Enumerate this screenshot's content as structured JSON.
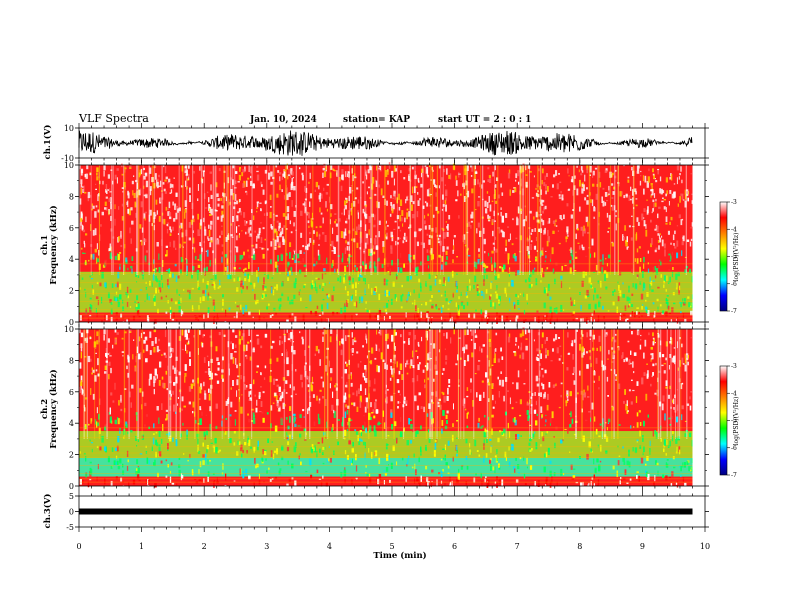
{
  "header": {
    "title": "VLF Spectra",
    "date": "Jan. 10, 2024",
    "station": "station= KAP",
    "start": "start  UT  =   2  : 0   : 1"
  },
  "chart_data": {
    "type": "heatmap",
    "x_axis": {
      "label": "Time  (min)",
      "range": [
        0,
        10
      ],
      "ticks": [
        0,
        1,
        2,
        3,
        4,
        5,
        6,
        7,
        8,
        9,
        10
      ],
      "data_end": 9.8
    },
    "panels": [
      {
        "id": "ch1-waveform",
        "type": "line",
        "ylabel": "ch.1(V)",
        "ylim": [
          -10,
          10
        ],
        "yticks": [
          10,
          -10
        ]
      },
      {
        "id": "ch1-spectrogram",
        "type": "heatmap",
        "ylabel_top": "ch.1",
        "ylabel": "Frequency  (kHz)",
        "ylim": [
          0,
          10
        ],
        "yticks": [
          0,
          2,
          4,
          6,
          8,
          10
        ],
        "colorbar": {
          "label": "log(PSD)(V²/Hz)",
          "range": [
            -7,
            -3
          ],
          "ticks": [
            -3,
            -4,
            -5,
            -6,
            -7
          ]
        }
      },
      {
        "id": "ch2-spectrogram",
        "type": "heatmap",
        "ylabel_top": "ch.2",
        "ylabel": "Frequency  (kHz)",
        "ylim": [
          0,
          10
        ],
        "yticks": [
          0,
          2,
          4,
          6,
          8,
          10
        ],
        "colorbar": {
          "label": "log(PSD)(V²/Hz)",
          "range": [
            -7,
            -3
          ],
          "ticks": [
            -3,
            -4,
            -5,
            -6,
            -7
          ]
        }
      },
      {
        "id": "ch3-waveform",
        "type": "line",
        "ylabel": "ch.3(V)",
        "ylim": [
          -5,
          5
        ],
        "yticks": [
          5,
          0,
          -5
        ],
        "value": 0
      }
    ],
    "colors": {
      "colormap": [
        "#000080",
        "#0000ff",
        "#00ffff",
        "#00ff00",
        "#ffff00",
        "#ff8000",
        "#ff0000",
        "#ffffff"
      ],
      "waveform": "#000000"
    }
  }
}
